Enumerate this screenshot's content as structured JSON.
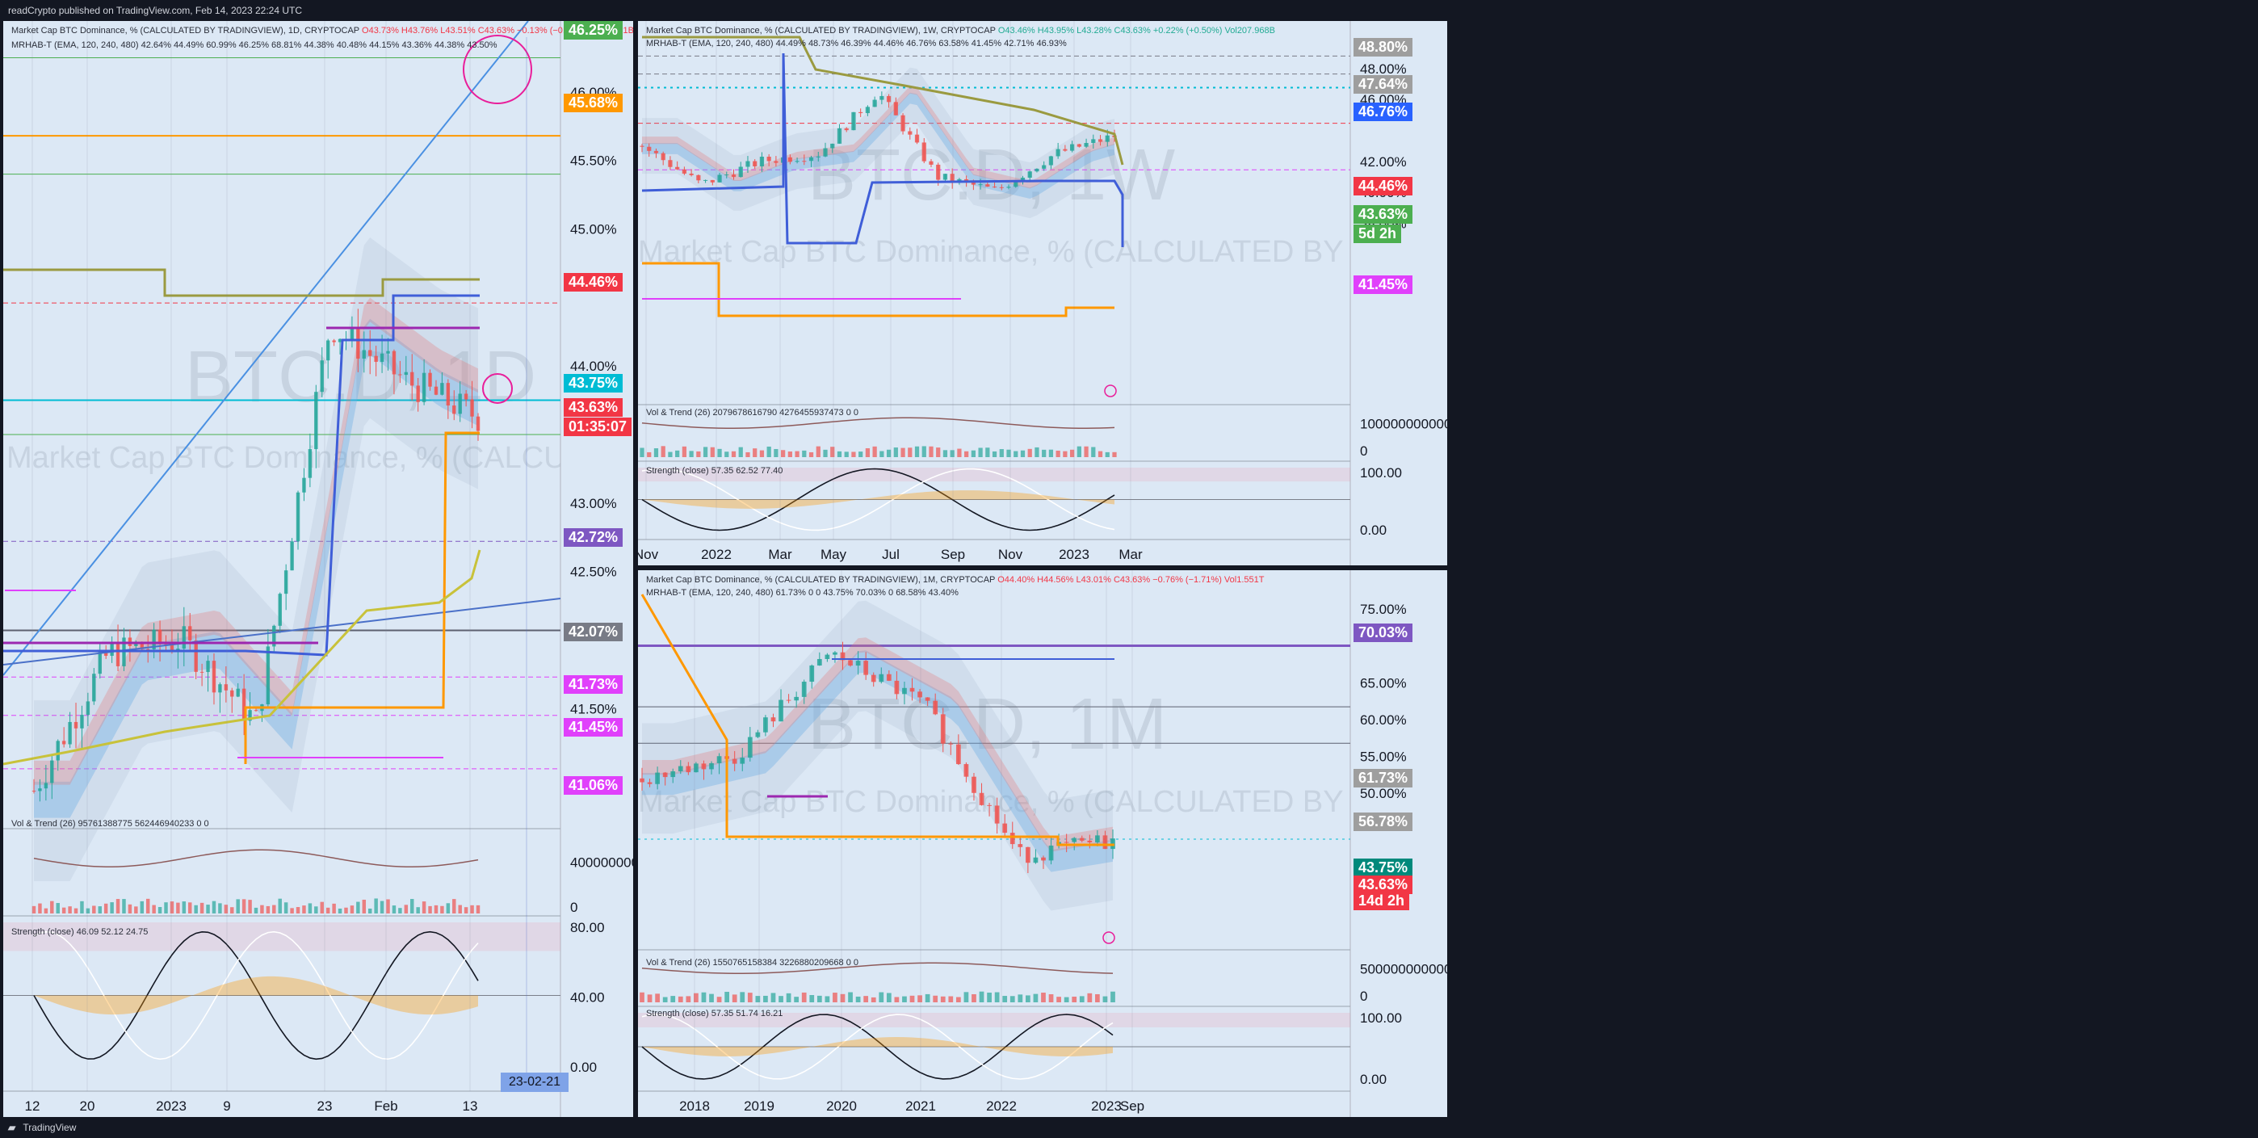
{
  "top_text": "readCrypto published on TradingView.com, Feb 14, 2023 22:24 UTC",
  "bottom_text": "TradingView",
  "colors": {
    "up": "#26a69a",
    "down": "#ef5350",
    "pane_bg": "#dce8f5",
    "blue_line": "#2962ff",
    "olive": "#9a9a40",
    "orange": "#ff9800",
    "purple": "#9c27b0",
    "magenta": "#e040fb"
  },
  "panels": {
    "daily": {
      "header1": "Market Cap BTC Dominance, % (CALCULATED BY TRADINGVIEW), 1D, CRYPTOCAP",
      "ohlc": "O43.73% H43.76% L43.51% C43.63% −0.13% (−0.29%) Vol95.761B",
      "header2": "MRHAB-T (EMA, 120, 240, 480)  42.64%  44.49%  60.99%  46.25%  68.81%  44.38%  40.48%  44.15%  43.36%  44.38%  43.50%",
      "watermark_symbol": "BTC.D, 1D",
      "watermark_name": "Market Cap BTC Dominance, % (CALCULATED BY TRADINGVIEW)",
      "vol_label": "Vol & Trend (26)  95761388775  562446940233  0  0",
      "str_label": "Strength (close)  46.09  52.12  24.75",
      "price_labels": [
        "46.00%",
        "45.50%",
        "45.00%",
        "44.00%",
        "43.00%",
        "42.50%",
        "41.50%"
      ],
      "tags": [
        {
          "text": "46.25%",
          "color": "#4caf50"
        },
        {
          "text": "45.68%",
          "color": "#ff9800"
        },
        {
          "text": "44.46%",
          "color": "#f23645"
        },
        {
          "text": "43.75%",
          "color": "#00bcd4"
        },
        {
          "text": "43.63%",
          "color": "#f23645"
        },
        {
          "text": "01:35:07",
          "color": "#f23645"
        },
        {
          "text": "42.72%",
          "color": "#7e57c2"
        },
        {
          "text": "42.07%",
          "color": "#787b86"
        },
        {
          "text": "41.73%",
          "color": "#e040fb"
        },
        {
          "text": "41.45%",
          "color": "#e040fb"
        },
        {
          "text": "41.06%",
          "color": "#e040fb"
        }
      ],
      "vol_axis": [
        "400000000000",
        "0"
      ],
      "str_axis": [
        "80.00",
        "40.00",
        "0.00"
      ],
      "x_labels": [
        "12",
        "20",
        "2023",
        "9",
        "23",
        "Feb",
        "13"
      ],
      "date_tag": "23-02-21"
    },
    "weekly": {
      "header1": "Market Cap BTC Dominance, % (CALCULATED BY TRADINGVIEW), 1W, CRYPTOCAP",
      "ohlc": "O43.46% H43.95% L43.28% C43.63% +0.22% (+0.50%) Vol207.968B",
      "header2": "MRHAB-T (EMA, 120, 240, 480)  44.49%  48.73%  46.39%  44.46%  46.76%  63.58%  41.45%  42.71%  46.93%",
      "watermark_symbol": "BTC.D, 1W",
      "watermark_name": "Market Cap BTC Dominance, % (CALCULATED BY TRADINGVIEW)",
      "vol_label": "Vol & Trend (26)  2079678616790  4276455937473  0  0",
      "str_label": "Strength (close)  57.35  62.52  77.40",
      "price_labels": [
        "48.00%",
        "46.00%",
        "42.00%",
        "40.00%",
        "38.00%"
      ],
      "tags": [
        {
          "text": "48.80%",
          "color": "#9e9e9e"
        },
        {
          "text": "47.64%",
          "color": "#9e9e9e"
        },
        {
          "text": "46.76%",
          "color": "#2962ff"
        },
        {
          "text": "44.46%",
          "color": "#f23645"
        },
        {
          "text": "43.63%",
          "color": "#4caf50"
        },
        {
          "text": "5d 2h",
          "color": "#4caf50"
        },
        {
          "text": "41.45%",
          "color": "#e040fb"
        }
      ],
      "vol_axis": [
        "10000000000000",
        "0"
      ],
      "str_axis": [
        "100.00",
        "0.00"
      ],
      "x_labels": [
        "Nov",
        "2022",
        "Mar",
        "May",
        "Jul",
        "Sep",
        "Nov",
        "2023",
        "Mar"
      ]
    },
    "monthly": {
      "header1": "Market Cap BTC Dominance, % (CALCULATED BY TRADINGVIEW), 1M, CRYPTOCAP",
      "ohlc": "O44.40% H44.56% L43.01% C43.63% −0.76% (−1.71%) Vol1.551T",
      "header2": "MRHAB-T (EMA, 120, 240, 480)  61.73%  0  0  43.75%  70.03%  0  68.58%  43.40%",
      "watermark_symbol": "BTC.D, 1M",
      "watermark_name": "Market Cap BTC Dominance, % (CALCULATED BY TRADINGVIEW)",
      "vol_label": "Vol & Trend (26)  1550765158384  3226880209668  0  0",
      "str_label": "Strength (close)  57.35  51.74  16.21",
      "price_labels": [
        "75.00%",
        "65.00%",
        "60.00%",
        "55.00%",
        "50.00%",
        "40.00%",
        "35.00%"
      ],
      "tags": [
        {
          "text": "70.03%",
          "color": "#7e57c2"
        },
        {
          "text": "61.73%",
          "color": "#9e9e9e"
        },
        {
          "text": "56.78%",
          "color": "#9e9e9e"
        },
        {
          "text": "43.75%",
          "color": "#00897b"
        },
        {
          "text": "43.63%",
          "color": "#f23645"
        },
        {
          "text": "14d 2h",
          "color": "#f23645"
        }
      ],
      "vol_axis": [
        "5000000000000",
        "0"
      ],
      "str_axis": [
        "100.00",
        "0.00"
      ],
      "x_labels": [
        "2018",
        "2019",
        "2020",
        "2021",
        "2022",
        "2023",
        "Sep"
      ]
    }
  },
  "chart_data": [
    {
      "type": "candlestick",
      "title": "BTC.D, 1D",
      "categories": [
        "Dec 12",
        "Dec 20",
        "Jan 1",
        "Jan 9",
        "Jan 23",
        "Feb 1",
        "Feb 13"
      ],
      "series": [
        {
          "values": [
            40.9,
            41.9,
            42.0,
            41.4,
            44.3,
            43.9,
            43.63
          ]
        }
      ],
      "ylim": [
        40.8,
        46.4
      ],
      "ylabel": ""
    },
    {
      "type": "candlestick",
      "title": "BTC.D, 1W",
      "categories": [
        "Nov 2021",
        "Jan 2022",
        "Mar 2022",
        "May 2022",
        "Jul 2022",
        "Sep 2022",
        "Nov 2022",
        "Jan 2023",
        "Feb 2023"
      ],
      "series": [
        {
          "values": [
            43.0,
            40.5,
            42.0,
            42.5,
            46.5,
            41.0,
            40.1,
            42.5,
            43.63
          ]
        }
      ],
      "ylim": [
        37.5,
        49.5
      ]
    },
    {
      "type": "candlestick",
      "title": "BTC.D, 1M",
      "categories": [
        "2018",
        "2019",
        "2020",
        "2021",
        "2022",
        "2023"
      ],
      "series": [
        {
          "values": [
            52.0,
            55.0,
            69.0,
            62.0,
            41.5,
            43.63
          ]
        }
      ],
      "ylim": [
        32,
        77
      ]
    }
  ]
}
